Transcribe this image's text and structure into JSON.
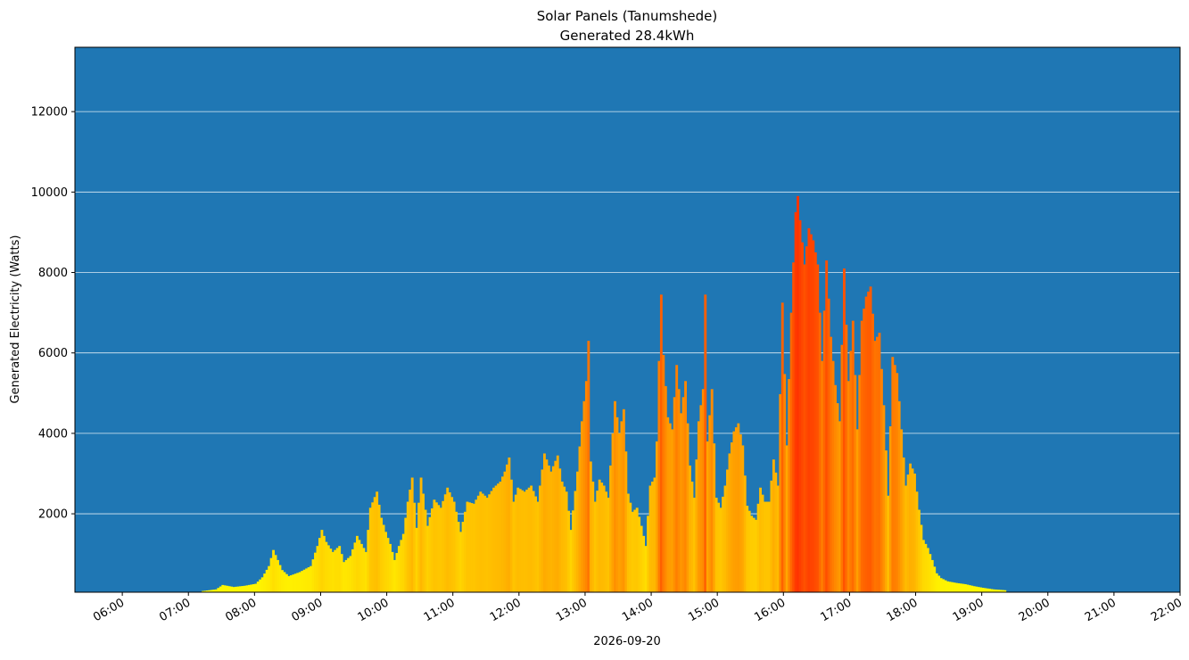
{
  "chart_data": {
    "type": "bar",
    "title": "Solar Panels (Tanumshede)",
    "subtitle": "Generated 28.4kWh",
    "xlabel": "2026-09-20",
    "ylabel": "Generated Electricity (Watts)",
    "ylim": [
      50,
      13600
    ],
    "xlim": [
      "05:17",
      "22:00"
    ],
    "grid": "horizontal",
    "background_color": "#1f77b4",
    "bar_color_scale": [
      "#ffff00",
      "#ff3300"
    ],
    "x_ticks": [
      "06:00",
      "07:00",
      "08:00",
      "09:00",
      "10:00",
      "11:00",
      "12:00",
      "13:00",
      "14:00",
      "15:00",
      "16:00",
      "17:00",
      "18:00",
      "19:00",
      "20:00",
      "21:00",
      "22:00"
    ],
    "y_ticks": [
      2000,
      4000,
      6000,
      8000,
      10000,
      12000
    ],
    "interval_minutes": 2,
    "points": [
      [
        "07:12",
        80
      ],
      [
        "07:24",
        120
      ],
      [
        "07:30",
        230
      ],
      [
        "07:40",
        180
      ],
      [
        "07:50",
        210
      ],
      [
        "08:00",
        260
      ],
      [
        "08:06",
        420
      ],
      [
        "08:12",
        700
      ],
      [
        "08:16",
        1100
      ],
      [
        "08:20",
        850
      ],
      [
        "08:24",
        600
      ],
      [
        "08:30",
        450
      ],
      [
        "08:40",
        550
      ],
      [
        "08:50",
        700
      ],
      [
        "08:56",
        1200
      ],
      [
        "09:00",
        1600
      ],
      [
        "09:04",
        1300
      ],
      [
        "09:10",
        1050
      ],
      [
        "09:16",
        1200
      ],
      [
        "09:20",
        800
      ],
      [
        "09:26",
        950
      ],
      [
        "09:32",
        1450
      ],
      [
        "09:36",
        1250
      ],
      [
        "09:40",
        1050
      ],
      [
        "09:44",
        2150
      ],
      [
        "09:50",
        2550
      ],
      [
        "09:54",
        1900
      ],
      [
        "09:58",
        1550
      ],
      [
        "10:02",
        1250
      ],
      [
        "10:06",
        850
      ],
      [
        "10:10",
        1200
      ],
      [
        "10:14",
        1500
      ],
      [
        "10:18",
        2300
      ],
      [
        "10:22",
        2900
      ],
      [
        "10:26",
        1650
      ],
      [
        "10:30",
        2900
      ],
      [
        "10:36",
        1700
      ],
      [
        "10:42",
        2350
      ],
      [
        "10:48",
        2150
      ],
      [
        "10:54",
        2650
      ],
      [
        "11:00",
        2300
      ],
      [
        "11:06",
        1550
      ],
      [
        "11:12",
        2300
      ],
      [
        "11:18",
        2250
      ],
      [
        "11:24",
        2550
      ],
      [
        "11:30",
        2400
      ],
      [
        "11:36",
        2650
      ],
      [
        "11:42",
        2800
      ],
      [
        "11:46",
        3050
      ],
      [
        "11:50",
        3400
      ],
      [
        "11:54",
        2300
      ],
      [
        "11:58",
        2650
      ],
      [
        "12:04",
        2550
      ],
      [
        "12:10",
        2700
      ],
      [
        "12:16",
        2300
      ],
      [
        "12:22",
        3500
      ],
      [
        "12:28",
        3050
      ],
      [
        "12:34",
        3450
      ],
      [
        "12:38",
        2800
      ],
      [
        "12:42",
        2550
      ],
      [
        "12:46",
        1600
      ],
      [
        "12:52",
        3050
      ],
      [
        "12:56",
        4300
      ],
      [
        "13:00",
        5300
      ],
      [
        "13:02",
        6300
      ],
      [
        "13:04",
        3300
      ],
      [
        "13:08",
        2300
      ],
      [
        "13:12",
        2850
      ],
      [
        "13:16",
        2700
      ],
      [
        "13:20",
        2400
      ],
      [
        "13:26",
        4800
      ],
      [
        "13:30",
        4000
      ],
      [
        "13:34",
        4600
      ],
      [
        "13:38",
        2500
      ],
      [
        "13:42",
        2050
      ],
      [
        "13:46",
        2150
      ],
      [
        "13:50",
        1700
      ],
      [
        "13:54",
        1200
      ],
      [
        "13:58",
        2700
      ],
      [
        "14:02",
        2900
      ],
      [
        "14:04",
        3800
      ],
      [
        "14:06",
        5800
      ],
      [
        "14:08",
        7450
      ],
      [
        "14:10",
        5950
      ],
      [
        "14:14",
        4400
      ],
      [
        "14:18",
        4100
      ],
      [
        "14:22",
        5700
      ],
      [
        "14:26",
        4500
      ],
      [
        "14:30",
        5300
      ],
      [
        "14:34",
        3200
      ],
      [
        "14:38",
        2400
      ],
      [
        "14:42",
        4300
      ],
      [
        "14:46",
        5100
      ],
      [
        "14:48",
        7450
      ],
      [
        "14:50",
        3800
      ],
      [
        "14:54",
        5100
      ],
      [
        "14:58",
        2400
      ],
      [
        "15:02",
        2150
      ],
      [
        "15:06",
        2700
      ],
      [
        "15:10",
        3500
      ],
      [
        "15:14",
        4050
      ],
      [
        "15:18",
        4250
      ],
      [
        "15:22",
        3700
      ],
      [
        "15:26",
        2200
      ],
      [
        "15:30",
        1950
      ],
      [
        "15:34",
        1850
      ],
      [
        "15:38",
        2650
      ],
      [
        "15:42",
        2300
      ],
      [
        "15:46",
        2300
      ],
      [
        "15:50",
        3350
      ],
      [
        "15:54",
        2700
      ],
      [
        "15:58",
        7250
      ],
      [
        "16:02",
        3700
      ],
      [
        "16:06",
        7000
      ],
      [
        "16:10",
        9500
      ],
      [
        "16:12",
        9900
      ],
      [
        "16:14",
        9300
      ],
      [
        "16:18",
        8200
      ],
      [
        "16:22",
        9100
      ],
      [
        "16:26",
        8800
      ],
      [
        "16:30",
        8200
      ],
      [
        "16:34",
        5800
      ],
      [
        "16:38",
        8300
      ],
      [
        "16:42",
        6400
      ],
      [
        "16:46",
        5200
      ],
      [
        "16:50",
        4300
      ],
      [
        "16:54",
        8100
      ],
      [
        "16:58",
        5300
      ],
      [
        "17:02",
        6800
      ],
      [
        "17:06",
        4100
      ],
      [
        "17:10",
        6800
      ],
      [
        "17:14",
        7400
      ],
      [
        "17:18",
        7650
      ],
      [
        "17:22",
        6300
      ],
      [
        "17:26",
        6500
      ],
      [
        "17:30",
        4700
      ],
      [
        "17:34",
        2450
      ],
      [
        "17:38",
        5900
      ],
      [
        "17:42",
        5500
      ],
      [
        "17:46",
        4100
      ],
      [
        "17:50",
        2700
      ],
      [
        "17:54",
        3250
      ],
      [
        "17:58",
        3000
      ],
      [
        "18:02",
        2100
      ],
      [
        "18:06",
        1350
      ],
      [
        "18:10",
        1150
      ],
      [
        "18:14",
        850
      ],
      [
        "18:18",
        520
      ],
      [
        "18:22",
        400
      ],
      [
        "18:28",
        320
      ],
      [
        "18:36",
        280
      ],
      [
        "18:44",
        250
      ],
      [
        "18:52",
        200
      ],
      [
        "19:00",
        160
      ],
      [
        "19:10",
        120
      ],
      [
        "19:20",
        100
      ]
    ]
  }
}
